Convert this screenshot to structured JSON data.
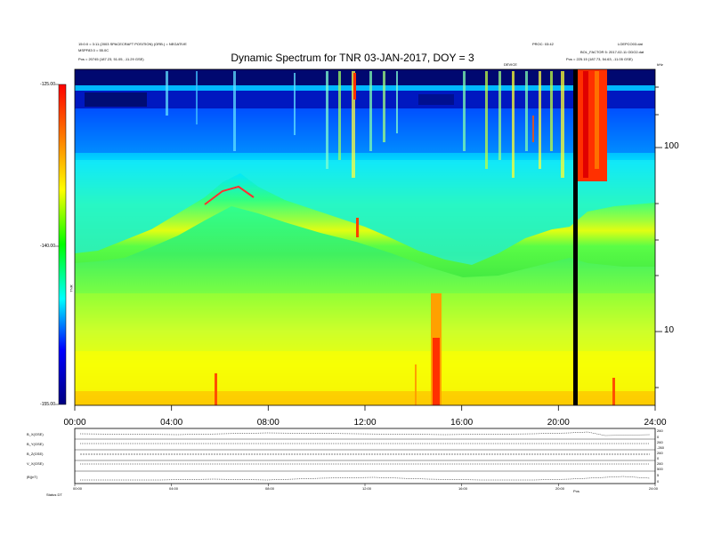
{
  "chart_data": {
    "type": "heatmap",
    "title": "Dynamic Spectrum for TNR 03-JAN-2017, DOY = 3",
    "x_ticks": [
      "00:00",
      "04:00",
      "08:00",
      "12:00",
      "16:00",
      "20:00",
      "24:00"
    ],
    "x_range_hours": [
      0,
      24
    ],
    "y_ticks": [
      "100",
      "10"
    ],
    "y_unit": "kHz",
    "y_scale": "log",
    "colorbar": {
      "ticks": [
        "-125.00",
        "-140.00",
        "-155.00"
      ],
      "range": [
        -155,
        -125
      ],
      "label": "TNR",
      "colors": [
        "#000080",
        "#0000ff",
        "#00ffff",
        "#00ff00",
        "#ffff00",
        "#ff8000",
        "#ff0000"
      ]
    },
    "features": [
      {
        "name": "data gap",
        "time_hours": 20.75
      },
      {
        "name": "intense emission",
        "time_hours_range": [
          20.8,
          22.0
        ]
      },
      {
        "name": "burst",
        "time_hours_range": [
          14.9,
          15.3
        ]
      }
    ],
    "bottom_panel_ticks": [
      "00:00",
      "04:00",
      "08:00",
      "12:00",
      "16:00",
      "20:00",
      "24:00"
    ]
  },
  "header": {
    "left_line1": "15:0:0 = 3:11 (2003 SPACECRAFT POSITION) (ORB.) = NEGATIVE",
    "left_line2": "MSPF83 0 = 55.0C",
    "left_line3": "Pos =  20745 (187.23, 51.05, -11.29 GSE)",
    "right_line1": "PROC: 03:42",
    "right_line2": "LOEPCO03.dat",
    "right_line3": "BOL_FACTOR 5: 2017-02-11 ODO2.dat",
    "right_line4": "Pos =  225.15 (187.73, 54.63, -11.05 GSE)",
    "corner_right": "kHz",
    "marker_mid": "DEVICE",
    "marker_right": "Pos"
  },
  "bottom_panels": {
    "labels": [
      "B_X(GSE)",
      "B_Y(GSE)",
      "B_Z(GSE)",
      "V_X(GSE)",
      "|B|(nT)"
    ],
    "right_labels": [
      "260",
      "0",
      "260",
      "-260",
      "260",
      "0",
      "260",
      "500",
      "5",
      "0"
    ],
    "footer_left": "Status   DT",
    "footer_mid": "Pos"
  }
}
